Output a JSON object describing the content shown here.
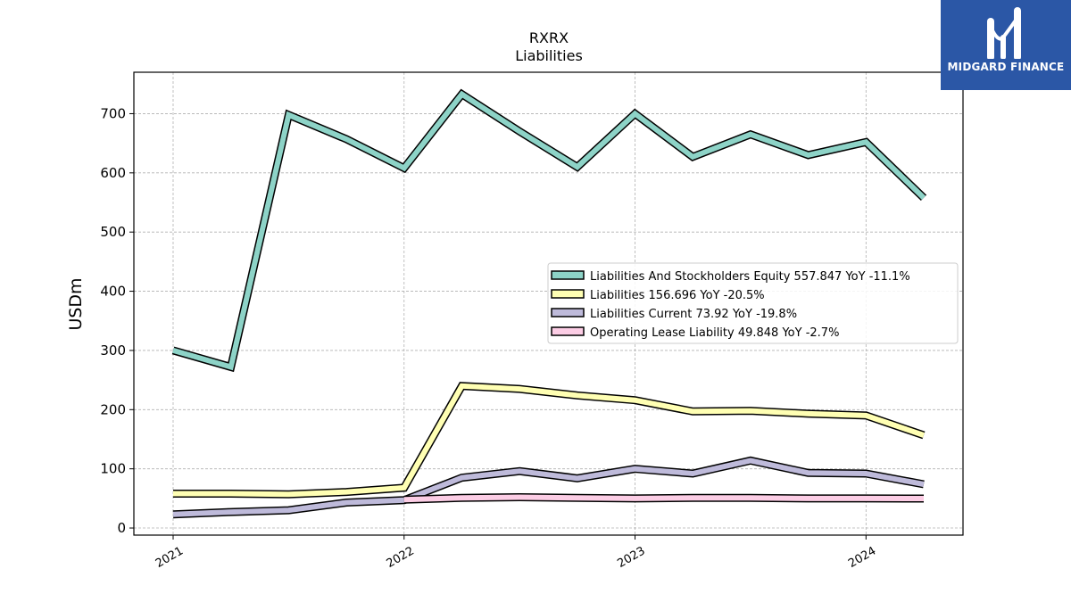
{
  "brand": {
    "name": "MIDGARD FINANCE",
    "color": "#2b57a6"
  },
  "chart_data": {
    "type": "line",
    "title": "RXRX",
    "subtitle": "Liabilities",
    "ylabel": "USDm",
    "xlabel": "",
    "ylim": [
      -12,
      770
    ],
    "xlim": [
      2020.83,
      2024.42
    ],
    "yticks": [
      0,
      100,
      200,
      300,
      400,
      500,
      600,
      700
    ],
    "xticks": [
      {
        "value": 2021,
        "label": "2021"
      },
      {
        "value": 2022,
        "label": "2022"
      },
      {
        "value": 2023,
        "label": "2023"
      },
      {
        "value": 2024,
        "label": "2024"
      }
    ],
    "grid": true,
    "legend_position": "center-right",
    "series": [
      {
        "name": "Liabilities And Stockholders Equity",
        "legend_label": "Liabilities And Stockholders Equity  557.847 YoY -11.1%",
        "color": "#8dd3c7",
        "x": [
          2021.0,
          2021.25,
          2021.5,
          2021.75,
          2022.0,
          2022.25,
          2022.5,
          2022.75,
          2023.0,
          2023.25,
          2023.5,
          2023.75,
          2024.0,
          2024.25
        ],
        "values": [
          300,
          272,
          698,
          657,
          608,
          733,
          670,
          610,
          700,
          627,
          665,
          630,
          652,
          557.847
        ]
      },
      {
        "name": "Liabilities",
        "legend_label": "Liabilities  156.696 YoY -20.5%",
        "color": "#ffffb3",
        "x": [
          2021.0,
          2021.25,
          2021.5,
          2021.75,
          2022.0,
          2022.25,
          2022.5,
          2022.75,
          2023.0,
          2023.25,
          2023.5,
          2023.75,
          2024.0,
          2024.25
        ],
        "values": [
          58,
          58,
          57,
          61,
          68,
          240,
          235,
          224,
          216,
          197,
          198,
          193,
          190,
          156.696
        ]
      },
      {
        "name": "Liabilities Current",
        "legend_label": "Liabilities Current  73.92 YoY -19.8%",
        "color": "#bebada",
        "x": [
          2021.0,
          2021.25,
          2021.5,
          2021.75,
          2022.0,
          2022.25,
          2022.5,
          2022.75,
          2023.0,
          2023.25,
          2023.5,
          2023.75,
          2024.0,
          2024.25
        ],
        "values": [
          23,
          27,
          30,
          43,
          47,
          85,
          96,
          84,
          100,
          92,
          114,
          93,
          92,
          73.92
        ]
      },
      {
        "name": "Operating Lease Liability",
        "legend_label": "Operating Lease Liability  49.848 YoY -2.7%",
        "color": "#fccde5",
        "x": [
          2022.0,
          2022.25,
          2022.5,
          2022.75,
          2023.0,
          2023.25,
          2023.5,
          2023.75,
          2024.0,
          2024.25
        ],
        "values": [
          48,
          51,
          52,
          51,
          50,
          51,
          51,
          50,
          50,
          49.848
        ]
      }
    ]
  }
}
